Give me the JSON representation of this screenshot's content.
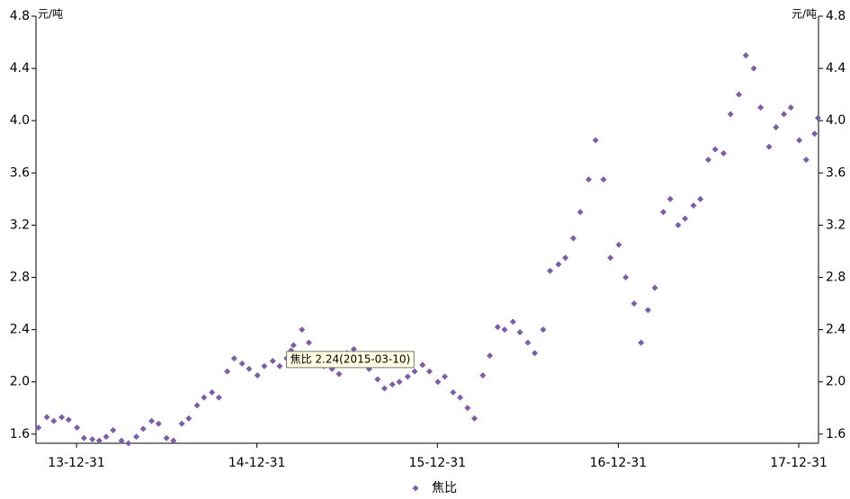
{
  "chart_data": {
    "type": "scatter",
    "y_label": "元/吨",
    "annotation": "焦比 2.24(2015-03-10)",
    "series": [
      {
        "name": "焦比",
        "color": "#7b5ea7",
        "x": [
          "2013-10-15",
          "2013-11-01",
          "2013-11-15",
          "2013-12-01",
          "2013-12-15",
          "2014-01-01",
          "2014-01-15",
          "2014-02-01",
          "2014-02-15",
          "2014-03-01",
          "2014-03-15",
          "2014-04-01",
          "2014-04-15",
          "2014-05-01",
          "2014-05-15",
          "2014-06-01",
          "2014-06-15",
          "2014-07-01",
          "2014-07-15",
          "2014-08-01",
          "2014-08-15",
          "2014-09-01",
          "2014-09-15",
          "2014-10-01",
          "2014-10-15",
          "2014-11-01",
          "2014-11-15",
          "2014-12-01",
          "2014-12-15",
          "2015-01-01",
          "2015-01-15",
          "2015-02-01",
          "2015-02-15",
          "2015-03-01",
          "2015-03-10",
          "2015-03-15",
          "2015-04-01",
          "2015-04-15",
          "2015-05-01",
          "2015-05-15",
          "2015-06-01",
          "2015-06-15",
          "2015-07-01",
          "2015-07-15",
          "2015-08-01",
          "2015-08-15",
          "2015-09-01",
          "2015-09-15",
          "2015-10-01",
          "2015-10-15",
          "2015-11-01",
          "2015-11-15",
          "2015-12-01",
          "2015-12-15",
          "2016-01-01",
          "2016-01-15",
          "2016-02-01",
          "2016-02-15",
          "2016-03-01",
          "2016-03-15",
          "2016-04-01",
          "2016-04-15",
          "2016-05-01",
          "2016-05-15",
          "2016-06-01",
          "2016-06-15",
          "2016-07-01",
          "2016-07-15",
          "2016-08-01",
          "2016-08-15",
          "2016-09-01",
          "2016-09-15",
          "2016-10-01",
          "2016-10-15",
          "2016-11-01",
          "2016-11-15",
          "2016-12-01",
          "2016-12-15",
          "2017-01-01",
          "2017-01-15",
          "2017-02-01",
          "2017-02-15",
          "2017-03-01",
          "2017-03-15",
          "2017-04-01",
          "2017-04-15",
          "2017-05-01",
          "2017-05-15",
          "2017-06-01",
          "2017-06-15",
          "2017-07-01",
          "2017-07-15",
          "2017-08-01",
          "2017-08-15",
          "2017-09-01",
          "2017-09-15",
          "2017-10-01",
          "2017-10-15",
          "2017-11-01",
          "2017-11-15",
          "2017-12-01",
          "2017-12-15",
          "2018-01-01",
          "2018-01-15",
          "2018-02-01",
          "2018-02-08"
        ],
        "values": [
          1.65,
          1.73,
          1.7,
          1.73,
          1.71,
          1.65,
          1.57,
          1.56,
          1.55,
          1.58,
          1.63,
          1.55,
          1.53,
          1.58,
          1.64,
          1.7,
          1.68,
          1.57,
          1.55,
          1.68,
          1.72,
          1.82,
          1.88,
          1.92,
          1.88,
          2.08,
          2.18,
          2.14,
          2.1,
          2.05,
          2.12,
          2.16,
          2.12,
          2.18,
          2.24,
          2.28,
          2.4,
          2.3,
          2.15,
          2.12,
          2.1,
          2.06,
          2.22,
          2.25,
          2.18,
          2.1,
          2.02,
          1.95,
          1.98,
          2.0,
          2.04,
          2.08,
          2.13,
          2.08,
          2.0,
          2.04,
          1.92,
          1.88,
          1.8,
          1.72,
          2.05,
          2.2,
          2.42,
          2.4,
          2.46,
          2.38,
          2.3,
          2.22,
          2.4,
          2.85,
          2.9,
          2.95,
          3.1,
          3.3,
          3.55,
          3.85,
          3.55,
          2.95,
          3.05,
          2.8,
          2.6,
          2.3,
          2.55,
          2.72,
          3.3,
          3.4,
          3.2,
          3.25,
          3.35,
          3.4,
          3.7,
          3.78,
          3.75,
          4.05,
          4.2,
          4.5,
          4.4,
          4.1,
          3.8,
          3.95,
          4.05,
          4.1,
          3.85,
          3.7,
          3.9,
          4.02
        ]
      }
    ],
    "xlim": [
      "2013-10-10",
      "2018-02-09"
    ],
    "xticks": [
      {
        "value": "2013-12-31",
        "label": "13-12-31"
      },
      {
        "value": "2014-12-31",
        "label": "14-12-31"
      },
      {
        "value": "2015-12-31",
        "label": "15-12-31"
      },
      {
        "value": "2016-12-31",
        "label": "16-12-31"
      },
      {
        "value": "2017-12-31",
        "label": "17-12-31"
      }
    ],
    "ylim": [
      1.53,
      4.8
    ],
    "yticks": [
      1.6,
      {
        "value": 2,
        "label": "2.0"
      },
      2.4,
      2.8,
      3.2,
      3.6,
      {
        "value": 4,
        "label": "4.0"
      },
      4.4,
      4.8
    ],
    "grid": false,
    "legend": "bottom"
  }
}
